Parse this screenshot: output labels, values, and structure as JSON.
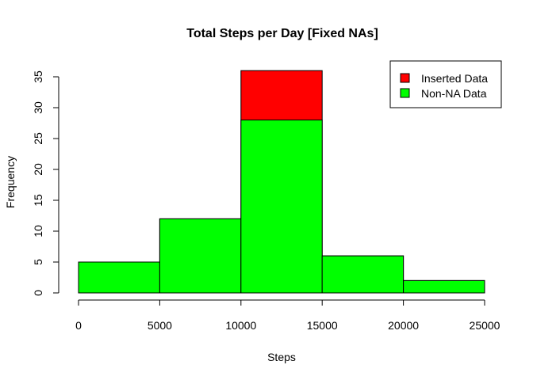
{
  "chart_data": {
    "type": "bar",
    "title": "Total Steps per Day [Fixed NAs]",
    "xlabel": "Steps",
    "ylabel": "Frequency",
    "xlim": [
      0,
      25000
    ],
    "ylim": [
      0,
      35
    ],
    "x_ticks": [
      "0",
      "5000",
      "10000",
      "15000",
      "20000",
      "25000"
    ],
    "y_ticks": [
      "0",
      "5",
      "10",
      "15",
      "20",
      "25",
      "30",
      "35"
    ],
    "bins": [
      [
        0,
        5000
      ],
      [
        5000,
        10000
      ],
      [
        10000,
        15000
      ],
      [
        15000,
        20000
      ],
      [
        20000,
        25000
      ]
    ],
    "series": [
      {
        "name": "Inserted Data",
        "color": "#ff0000",
        "values": [
          5,
          12,
          36,
          6,
          2
        ]
      },
      {
        "name": "Non-NA Data",
        "color": "#00ff00",
        "values": [
          5,
          12,
          28,
          6,
          2
        ]
      }
    ],
    "legend": {
      "position": "top-right",
      "items": [
        {
          "label": "Inserted Data",
          "color": "#ff0000"
        },
        {
          "label": "Non-NA Data",
          "color": "#00ff00"
        }
      ]
    },
    "grid": false
  }
}
